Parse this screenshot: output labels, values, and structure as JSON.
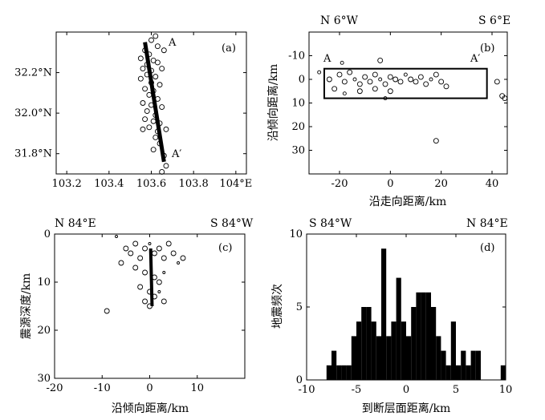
{
  "chart_data": [
    {
      "panel": "(a)",
      "type": "scatter",
      "x_ticks": [
        "103.2",
        "103.4",
        "103.6",
        "103.8",
        "104°E"
      ],
      "y_ticks": [
        "32.2°N",
        "32.0°N",
        "31.8°N"
      ],
      "xlim": [
        103.15,
        104.05
      ],
      "ylim": [
        31.7,
        32.4
      ],
      "annotations": [
        "A",
        "A′"
      ],
      "fault_line": {
        "x": [
          103.57,
          103.66
        ],
        "y": [
          32.35,
          31.76
        ]
      },
      "points": [
        [
          103.62,
          32.38
        ],
        [
          103.6,
          32.36
        ],
        [
          103.63,
          32.33
        ],
        [
          103.57,
          32.31
        ],
        [
          103.59,
          32.29
        ],
        [
          103.66,
          32.31
        ],
        [
          103.55,
          32.27
        ],
        [
          103.61,
          32.26
        ],
        [
          103.58,
          32.24
        ],
        [
          103.63,
          32.25
        ],
        [
          103.56,
          32.22
        ],
        [
          103.6,
          32.21
        ],
        [
          103.65,
          32.22
        ],
        [
          103.58,
          32.19
        ],
        [
          103.62,
          32.18
        ],
        [
          103.55,
          32.17
        ],
        [
          103.6,
          32.15
        ],
        [
          103.64,
          32.14
        ],
        [
          103.57,
          32.12
        ],
        [
          103.61,
          32.11
        ],
        [
          103.59,
          32.09
        ],
        [
          103.63,
          32.07
        ],
        [
          103.56,
          32.05
        ],
        [
          103.6,
          32.04
        ],
        [
          103.65,
          32.03
        ],
        [
          103.58,
          32.01
        ],
        [
          103.62,
          31.99
        ],
        [
          103.57,
          31.97
        ],
        [
          103.61,
          31.96
        ],
        [
          103.64,
          31.95
        ],
        [
          103.59,
          31.93
        ],
        [
          103.63,
          31.91
        ],
        [
          103.56,
          31.92
        ],
        [
          103.67,
          31.92
        ],
        [
          103.62,
          31.88
        ],
        [
          103.64,
          31.85
        ],
        [
          103.61,
          31.82
        ],
        [
          103.66,
          31.79
        ],
        [
          103.67,
          31.74
        ],
        [
          103.65,
          31.71
        ]
      ]
    },
    {
      "panel": "(b)",
      "type": "scatter",
      "orientation_left": "N  6°W",
      "orientation_right": "S  6°E",
      "xlabel": "沿走向距离/km",
      "ylabel": "沿倾向距离/km",
      "xlim": [
        -32,
        46
      ],
      "ylim": [
        -20,
        40
      ],
      "x_ticks": [
        "-20",
        "0",
        "20",
        "40"
      ],
      "y_ticks": [
        "-10",
        "0",
        "10",
        "20",
        "30"
      ],
      "annotations": [
        "A",
        "A′"
      ],
      "box": {
        "x": [
          -26,
          38
        ],
        "y": [
          -4.5,
          8
        ]
      },
      "points": [
        [
          -28,
          -3
        ],
        [
          -24,
          0
        ],
        [
          -20,
          -2
        ],
        [
          -18,
          1
        ],
        [
          -16,
          -3
        ],
        [
          -14,
          0
        ],
        [
          -12,
          2
        ],
        [
          -10,
          -1
        ],
        [
          -8,
          1
        ],
        [
          -6,
          -2
        ],
        [
          -4,
          0
        ],
        [
          -2,
          2
        ],
        [
          0,
          -1
        ],
        [
          2,
          0
        ],
        [
          4,
          1
        ],
        [
          6,
          -2
        ],
        [
          8,
          0
        ],
        [
          10,
          1
        ],
        [
          12,
          -1
        ],
        [
          14,
          2
        ],
        [
          16,
          0
        ],
        [
          18,
          -2
        ],
        [
          20,
          1
        ],
        [
          22,
          3
        ],
        [
          -22,
          4
        ],
        [
          -18,
          6
        ],
        [
          -12,
          5
        ],
        [
          -6,
          4
        ],
        [
          0,
          5
        ],
        [
          -4,
          -8
        ],
        [
          -19,
          -7
        ],
        [
          18,
          26
        ],
        [
          44,
          7
        ],
        [
          42,
          1
        ],
        [
          45,
          8
        ],
        [
          -2,
          8
        ]
      ]
    },
    {
      "panel": "(c)",
      "type": "scatter",
      "orientation_left": "N 84°E",
      "orientation_right": "S 84°W",
      "xlabel": "沿倾向距离/km",
      "ylabel": "震源深度/km",
      "xlim": [
        -20,
        20
      ],
      "ylim": [
        0,
        30
      ],
      "x_ticks": [
        "-20",
        "-10",
        "0",
        "10"
      ],
      "y_ticks": [
        "0",
        "10",
        "20",
        "30"
      ],
      "fault_line": {
        "x": [
          0.2,
          0.5
        ],
        "y": [
          3,
          15
        ]
      },
      "points": [
        [
          -7,
          0.5
        ],
        [
          -5,
          3
        ],
        [
          -4,
          4
        ],
        [
          -3,
          2
        ],
        [
          -2,
          5
        ],
        [
          -1,
          3
        ],
        [
          0,
          2
        ],
        [
          1,
          4
        ],
        [
          2,
          3
        ],
        [
          3,
          5
        ],
        [
          4,
          2
        ],
        [
          5,
          4
        ],
        [
          6,
          6
        ],
        [
          7,
          5
        ],
        [
          -6,
          6
        ],
        [
          -3,
          7
        ],
        [
          -1,
          8
        ],
        [
          1,
          9
        ],
        [
          3,
          8
        ],
        [
          2,
          10
        ],
        [
          -2,
          11
        ],
        [
          0,
          12
        ],
        [
          1,
          13
        ],
        [
          -1,
          14
        ],
        [
          2,
          12
        ],
        [
          0,
          15
        ],
        [
          -9,
          16
        ],
        [
          3,
          14
        ]
      ]
    },
    {
      "panel": "(d)",
      "type": "bar",
      "orientation_left": "S 84°W",
      "orientation_right": "N 84°E",
      "xlabel": "到断层面距离/km",
      "ylabel": "地震频次",
      "xlim": [
        -10,
        10
      ],
      "ylim": [
        0,
        10
      ],
      "x_ticks": [
        "-10",
        "-5",
        "0",
        "5",
        "10"
      ],
      "y_ticks": [
        "0",
        "5",
        "10"
      ],
      "bin_width": 0.5,
      "bins": [
        [
          -8,
          1
        ],
        [
          -7.5,
          2
        ],
        [
          -7,
          1
        ],
        [
          -6.5,
          1
        ],
        [
          -6,
          1
        ],
        [
          -5.5,
          3
        ],
        [
          -5,
          4
        ],
        [
          -4.5,
          5
        ],
        [
          -4,
          5
        ],
        [
          -3.5,
          4
        ],
        [
          -3,
          3
        ],
        [
          -2.5,
          9
        ],
        [
          -2,
          3
        ],
        [
          -1.5,
          4
        ],
        [
          -1,
          7
        ],
        [
          -0.5,
          4
        ],
        [
          0,
          3
        ],
        [
          0.5,
          5
        ],
        [
          1,
          6
        ],
        [
          1.5,
          6
        ],
        [
          2,
          6
        ],
        [
          2.5,
          5
        ],
        [
          3,
          3
        ],
        [
          3.5,
          2
        ],
        [
          4,
          1
        ],
        [
          4.5,
          4
        ],
        [
          5,
          1
        ],
        [
          5.5,
          2
        ],
        [
          6,
          1
        ],
        [
          6.5,
          2
        ],
        [
          7,
          2
        ],
        [
          9.5,
          1
        ]
      ]
    }
  ]
}
